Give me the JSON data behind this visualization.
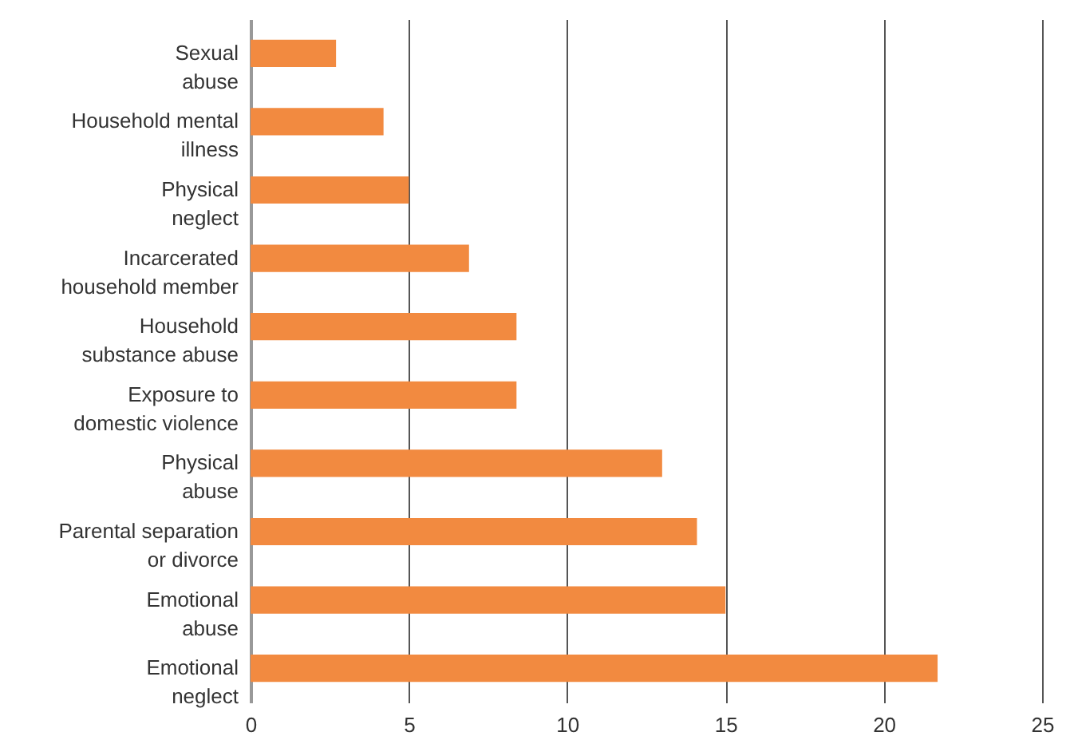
{
  "chart_data": {
    "type": "bar",
    "orientation": "horizontal",
    "categories": [
      "Sexual\nabuse",
      "Household mental\nillness",
      "Physical\nneglect",
      "Incarcerated\nhousehold member",
      "Household\nsubstance abuse",
      "Exposure to\ndomestic violence",
      "Physical\nabuse",
      "Parental separation\nor divorce",
      "Emotional\nabuse",
      "Emotional\nneglect"
    ],
    "values": [
      2.7,
      4.2,
      5.0,
      6.9,
      8.4,
      8.4,
      13.0,
      14.1,
      15.0,
      21.7
    ],
    "color": "#f28a40",
    "xlim": [
      0,
      25
    ],
    "xticks": [
      0,
      5,
      10,
      15,
      20,
      25
    ],
    "grid": "x"
  }
}
